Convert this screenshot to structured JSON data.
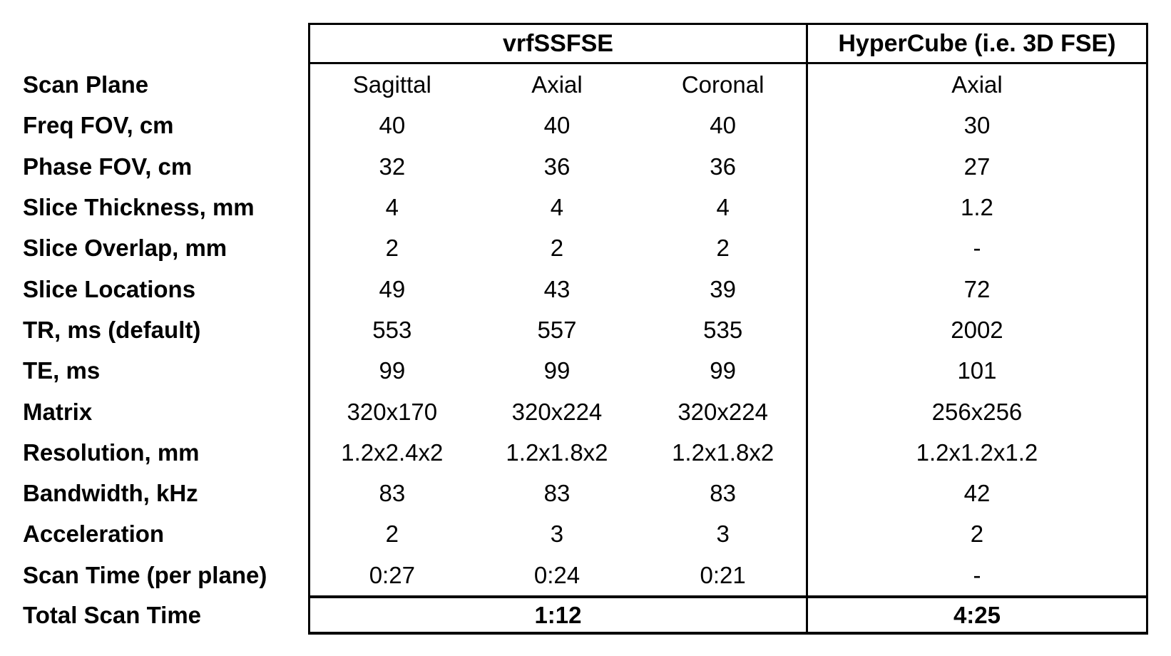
{
  "chart_data": {
    "type": "table",
    "headers": [
      "vrfSSFSE",
      "HyperCube (i.e. 3D FSE)"
    ],
    "rows": [
      {
        "label": "Scan Plane",
        "values": [
          "Sagittal",
          "Axial",
          "Coronal",
          "Axial"
        ]
      },
      {
        "label": "Freq FOV, cm",
        "values": [
          "40",
          "40",
          "40",
          "30"
        ]
      },
      {
        "label": "Phase FOV, cm",
        "values": [
          "32",
          "36",
          "36",
          "27"
        ]
      },
      {
        "label": "Slice Thickness, mm",
        "values": [
          "4",
          "4",
          "4",
          "1.2"
        ]
      },
      {
        "label": "Slice Overlap, mm",
        "values": [
          "2",
          "2",
          "2",
          "-"
        ]
      },
      {
        "label": "Slice Locations",
        "values": [
          "49",
          "43",
          "39",
          "72"
        ]
      },
      {
        "label": "TR, ms (default)",
        "values": [
          "553",
          "557",
          "535",
          "2002"
        ]
      },
      {
        "label": "TE, ms",
        "values": [
          "99",
          "99",
          "99",
          "101"
        ]
      },
      {
        "label": "Matrix",
        "values": [
          "320x170",
          "320x224",
          "320x224",
          "256x256"
        ]
      },
      {
        "label": "Resolution, mm",
        "values": [
          "1.2x2.4x2",
          "1.2x1.8x2",
          "1.2x1.8x2",
          "1.2x1.2x1.2"
        ]
      },
      {
        "label": "Bandwidth, kHz",
        "values": [
          "83",
          "83",
          "83",
          "42"
        ]
      },
      {
        "label": "Acceleration",
        "values": [
          "2",
          "3",
          "3",
          "2"
        ]
      },
      {
        "label": "Scan Time (per plane)",
        "values": [
          "0:27",
          "0:24",
          "0:21",
          "-"
        ]
      }
    ],
    "total_row": {
      "label": "Total Scan Time",
      "values": [
        "1:12",
        "4:25"
      ]
    },
    "layout": {
      "grid": "off",
      "border_color": "#000000",
      "background": "#ffffff",
      "label_column_outside_border": true,
      "group_spans": [
        3,
        1
      ]
    }
  }
}
